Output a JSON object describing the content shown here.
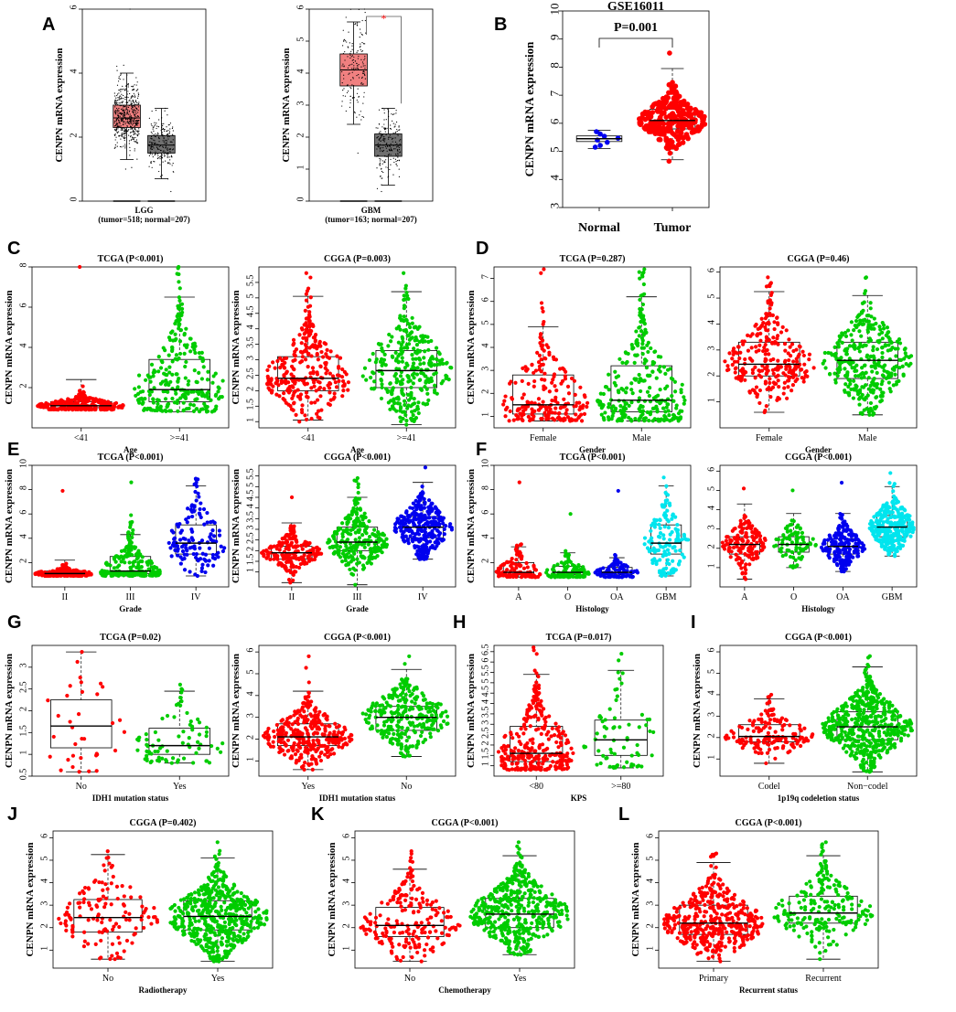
{
  "figure": {
    "labels": [
      "A",
      "B",
      "C",
      "D",
      "E",
      "F",
      "G",
      "H",
      "I",
      "J",
      "K",
      "L"
    ]
  },
  "colors": {
    "red": "#ff0000",
    "green": "#00cc00",
    "blue": "#0000ee",
    "cyan": "#00e5ee",
    "box_red": "#f08080",
    "box_gray": "#707070",
    "jitter": "#000000",
    "sig_star": "#ff0000"
  },
  "chart_data": [
    {
      "id": "A1",
      "panel": "A",
      "type": "boxplot",
      "title": "",
      "ylabel": "CENPN mRNA expression",
      "xlabel_lines": [
        "LGG",
        "(tumor=518; normal=207)"
      ],
      "ylim": [
        0,
        6
      ],
      "yticks": [
        0,
        2,
        4,
        6
      ],
      "groups": [
        {
          "name": "tumor",
          "q1": 2.3,
          "median": 2.6,
          "q3": 3.0,
          "whisker_low": 1.3,
          "whisker_high": 4.0,
          "n": 518,
          "color": "box_red",
          "points_range": [
            1.0,
            6.0
          ]
        },
        {
          "name": "normal",
          "q1": 1.5,
          "median": 1.75,
          "q3": 2.05,
          "whisker_low": 0.7,
          "whisker_high": 2.9,
          "n": 207,
          "color": "box_gray",
          "points_range": [
            0.3,
            2.9
          ]
        }
      ]
    },
    {
      "id": "A2",
      "panel": "A",
      "type": "boxplot",
      "title": "",
      "ylabel": "CENPN mRNA expression",
      "xlabel_lines": [
        "GBM",
        "(tumor=163; normal=207)"
      ],
      "ylim": [
        0,
        6
      ],
      "yticks": [
        0,
        1,
        2,
        3,
        4,
        5,
        6
      ],
      "significance": "*",
      "groups": [
        {
          "name": "tumor",
          "q1": 3.6,
          "median": 4.1,
          "q3": 4.6,
          "whisker_low": 2.4,
          "whisker_high": 5.6,
          "n": 163,
          "color": "box_red",
          "points_range": [
            1.5,
            6.0
          ]
        },
        {
          "name": "normal",
          "q1": 1.4,
          "median": 1.75,
          "q3": 2.1,
          "whisker_low": 0.5,
          "whisker_high": 2.9,
          "n": 207,
          "color": "box_gray",
          "points_range": [
            0.3,
            2.9
          ]
        }
      ]
    },
    {
      "id": "B",
      "panel": "B",
      "type": "beeswarm",
      "title": "GSE16011",
      "ylabel": "CENPN mRNA expression",
      "xlabel": "",
      "pvalue_label": "P=0.001",
      "ylim": [
        3,
        10
      ],
      "yticks": [
        3,
        4,
        5,
        6,
        7,
        8,
        9,
        10
      ],
      "groups": [
        {
          "name": "Normal",
          "n": 8,
          "q1": 5.35,
          "median": 5.45,
          "q3": 5.55,
          "whisker_low": 5.1,
          "whisker_high": 5.75,
          "min": 5.15,
          "max": 5.7,
          "color": "blue"
        },
        {
          "name": "Tumor",
          "n": 276,
          "q1": 5.8,
          "median": 6.1,
          "q3": 6.5,
          "whisker_low": 4.7,
          "whisker_high": 7.95,
          "min": 4.65,
          "max": 8.5,
          "color": "red"
        }
      ]
    },
    {
      "id": "C1",
      "panel": "C",
      "type": "beeswarm",
      "title": "TCGA (P<0.001)",
      "ylabel": "CENPN mRNA expression",
      "xlabel": "Age",
      "ylim": [
        0,
        8
      ],
      "yticks": [
        2,
        4,
        6,
        8
      ],
      "groups": [
        {
          "name": "<41",
          "n": 260,
          "q1": 1.0,
          "median": 1.1,
          "q3": 1.3,
          "whisker_low": 0.9,
          "whisker_high": 2.4,
          "min": 0.9,
          "max": 8.0,
          "color": "red"
        },
        {
          "name": ">=41",
          "n": 260,
          "q1": 1.3,
          "median": 1.9,
          "q3": 3.4,
          "whisker_low": 0.8,
          "whisker_high": 6.5,
          "min": 0.8,
          "max": 8.0,
          "color": "green"
        }
      ]
    },
    {
      "id": "C2",
      "panel": "C",
      "type": "beeswarm",
      "title": "CGGA (P=0.003)",
      "ylabel": "CENPN mRNA expression",
      "xlabel": "Age",
      "ylim": [
        0.8,
        6
      ],
      "yticks": [
        1,
        1.5,
        2,
        2.5,
        3,
        3.5,
        4,
        4.5,
        5,
        5.5
      ],
      "groups": [
        {
          "name": "<41",
          "n": 280,
          "q1": 2.0,
          "median": 2.4,
          "q3": 3.1,
          "whisker_low": 1.05,
          "whisker_high": 5.05,
          "min": 1.0,
          "max": 5.8,
          "color": "red"
        },
        {
          "name": ">=41",
          "n": 310,
          "q1": 2.1,
          "median": 2.65,
          "q3": 3.3,
          "whisker_low": 0.9,
          "whisker_high": 5.2,
          "min": 0.9,
          "max": 5.8,
          "color": "green"
        }
      ]
    },
    {
      "id": "D1",
      "panel": "D",
      "type": "beeswarm",
      "title": "TCGA (P=0.287)",
      "ylabel": "CENPN mRNA expression",
      "xlabel": "Gender",
      "ylim": [
        0.5,
        7.5
      ],
      "yticks": [
        1,
        2,
        3,
        4,
        5,
        6,
        7
      ],
      "groups": [
        {
          "name": "Female",
          "n": 210,
          "q1": 1.1,
          "median": 1.5,
          "q3": 2.8,
          "whisker_low": 0.8,
          "whisker_high": 4.9,
          "min": 0.8,
          "max": 7.4,
          "color": "red"
        },
        {
          "name": "Male",
          "n": 280,
          "q1": 1.2,
          "median": 1.7,
          "q3": 3.2,
          "whisker_low": 0.8,
          "whisker_high": 6.2,
          "min": 0.8,
          "max": 7.4,
          "color": "green"
        }
      ]
    },
    {
      "id": "D2",
      "panel": "D",
      "type": "beeswarm",
      "title": "CGGA (P=0.46)",
      "ylabel": "",
      "xlabel": "Gender",
      "ylim": [
        0,
        6.2
      ],
      "yticks": [
        1,
        2,
        3,
        4,
        5,
        6
      ],
      "groups": [
        {
          "name": "Female",
          "n": 260,
          "q1": 2.0,
          "median": 2.45,
          "q3": 3.3,
          "whisker_low": 0.6,
          "whisker_high": 5.25,
          "min": 0.6,
          "max": 5.8,
          "color": "red"
        },
        {
          "name": "Male",
          "n": 330,
          "q1": 1.9,
          "median": 2.6,
          "q3": 3.3,
          "whisker_low": 0.5,
          "whisker_high": 5.1,
          "min": 0.5,
          "max": 5.8,
          "color": "green"
        }
      ]
    },
    {
      "id": "E1",
      "panel": "E",
      "type": "beeswarm",
      "title": "TCGA (P<0.001)",
      "ylabel": "CENPN mRNA expression",
      "xlabel": "Grade",
      "ylim": [
        0,
        10
      ],
      "yticks": [
        2,
        4,
        6,
        8,
        10
      ],
      "groups": [
        {
          "name": "II",
          "n": 200,
          "q1": 1.0,
          "median": 1.1,
          "q3": 1.3,
          "whisker_low": 0.9,
          "whisker_high": 2.2,
          "min": 0.9,
          "max": 7.9,
          "color": "red"
        },
        {
          "name": "III",
          "n": 230,
          "q1": 1.1,
          "median": 1.3,
          "q3": 2.5,
          "whisker_low": 0.9,
          "whisker_high": 4.3,
          "min": 0.9,
          "max": 8.6,
          "color": "green"
        },
        {
          "name": "IV",
          "n": 130,
          "q1": 2.7,
          "median": 3.6,
          "q3": 5.1,
          "whisker_low": 0.9,
          "whisker_high": 8.3,
          "min": 0.9,
          "max": 8.9,
          "color": "blue"
        }
      ]
    },
    {
      "id": "E2",
      "panel": "E",
      "type": "beeswarm",
      "title": "CGGA (P<0.001)",
      "ylabel": "CENPN mRNA expression",
      "xlabel": "Grade",
      "ylim": [
        0.3,
        6
      ],
      "yticks": [
        1,
        1.5,
        2,
        2.5,
        3,
        3.5,
        4,
        4.5,
        5,
        5.5
      ],
      "groups": [
        {
          "name": "II",
          "n": 190,
          "q1": 1.6,
          "median": 1.9,
          "q3": 2.2,
          "whisker_low": 0.5,
          "whisker_high": 3.3,
          "min": 0.5,
          "max": 4.5,
          "color": "red"
        },
        {
          "name": "III",
          "n": 250,
          "q1": 2.0,
          "median": 2.4,
          "q3": 3.1,
          "whisker_low": 0.4,
          "whisker_high": 4.5,
          "min": 0.4,
          "max": 5.4,
          "color": "green"
        },
        {
          "name": "IV",
          "n": 300,
          "q1": 2.6,
          "median": 3.1,
          "q3": 3.6,
          "whisker_low": 1.6,
          "whisker_high": 5.2,
          "min": 1.6,
          "max": 5.9,
          "color": "blue"
        }
      ]
    },
    {
      "id": "F1",
      "panel": "F",
      "type": "beeswarm",
      "title": "TCGA (P<0.001)",
      "ylabel": "CENPN mRNA expression",
      "xlabel": "Histology",
      "ylim": [
        0,
        10
      ],
      "yticks": [
        2,
        4,
        6,
        8,
        10
      ],
      "groups": [
        {
          "name": "A",
          "n": 120,
          "q1": 1.0,
          "median": 1.2,
          "q3": 2.0,
          "whisker_low": 0.8,
          "whisker_high": 3.3,
          "min": 0.8,
          "max": 8.6,
          "color": "red"
        },
        {
          "name": "O",
          "n": 120,
          "q1": 1.0,
          "median": 1.2,
          "q3": 1.7,
          "whisker_low": 0.8,
          "whisker_high": 2.8,
          "min": 0.8,
          "max": 6.0,
          "color": "green"
        },
        {
          "name": "OA",
          "n": 90,
          "q1": 1.0,
          "median": 1.2,
          "q3": 1.6,
          "whisker_low": 0.8,
          "whisker_high": 2.4,
          "min": 0.8,
          "max": 7.9,
          "color": "blue"
        },
        {
          "name": "GBM",
          "n": 140,
          "q1": 2.7,
          "median": 3.6,
          "q3": 5.1,
          "whisker_low": 0.9,
          "whisker_high": 8.3,
          "min": 0.9,
          "max": 9.0,
          "color": "cyan"
        }
      ]
    },
    {
      "id": "F2",
      "panel": "F",
      "type": "beeswarm",
      "title": "CGGA (P<0.001)",
      "ylabel": "",
      "xlabel": "Histology",
      "ylim": [
        0,
        6.3
      ],
      "yticks": [
        1,
        2,
        3,
        4,
        5,
        6
      ],
      "groups": [
        {
          "name": "A",
          "n": 150,
          "q1": 1.7,
          "median": 2.2,
          "q3": 2.6,
          "whisker_low": 0.4,
          "whisker_high": 4.3,
          "min": 0.4,
          "max": 5.1,
          "color": "red"
        },
        {
          "name": "O",
          "n": 80,
          "q1": 1.8,
          "median": 2.2,
          "q3": 2.6,
          "whisker_low": 1.0,
          "whisker_high": 3.8,
          "min": 1.0,
          "max": 5.0,
          "color": "green"
        },
        {
          "name": "OA",
          "n": 200,
          "q1": 1.7,
          "median": 2.1,
          "q3": 2.5,
          "whisker_low": 0.8,
          "whisker_high": 3.8,
          "min": 0.8,
          "max": 5.4,
          "color": "blue"
        },
        {
          "name": "GBM",
          "n": 300,
          "q1": 2.6,
          "median": 3.1,
          "q3": 3.7,
          "whisker_low": 1.6,
          "whisker_high": 5.2,
          "min": 1.6,
          "max": 5.9,
          "color": "cyan"
        }
      ]
    },
    {
      "id": "G1",
      "panel": "G",
      "type": "beeswarm",
      "title": "TCGA (P=0.02)",
      "ylabel": "CENPN mRNA expression",
      "xlabel": "IDH1 mutation status",
      "ylim": [
        0.5,
        3.5
      ],
      "yticks": [
        0.5,
        1,
        1.5,
        2,
        2.5,
        3
      ],
      "groups": [
        {
          "name": "No",
          "n": 35,
          "q1": 1.15,
          "median": 1.65,
          "q3": 2.25,
          "whisker_low": 0.6,
          "whisker_high": 3.35,
          "min": 0.6,
          "max": 3.35,
          "color": "red"
        },
        {
          "name": "Yes",
          "n": 80,
          "q1": 1.0,
          "median": 1.2,
          "q3": 1.6,
          "whisker_low": 0.8,
          "whisker_high": 2.45,
          "min": 0.8,
          "max": 2.6,
          "color": "green"
        }
      ]
    },
    {
      "id": "G2",
      "panel": "G",
      "type": "beeswarm",
      "title": "CGGA (P<0.001)",
      "ylabel": "CENPN mRNA expression",
      "xlabel": "IDH1 mutation status",
      "ylim": [
        0.3,
        6.3
      ],
      "yticks": [
        1,
        2,
        3,
        4,
        5,
        6
      ],
      "groups": [
        {
          "name": "Yes",
          "n": 330,
          "q1": 1.7,
          "median": 2.1,
          "q3": 2.7,
          "whisker_low": 0.6,
          "whisker_high": 4.2,
          "min": 0.6,
          "max": 5.8,
          "color": "red"
        },
        {
          "name": "No",
          "n": 300,
          "q1": 2.4,
          "median": 3.0,
          "q3": 3.5,
          "whisker_low": 1.2,
          "whisker_high": 5.2,
          "min": 1.2,
          "max": 5.8,
          "color": "green"
        }
      ]
    },
    {
      "id": "H",
      "panel": "H",
      "type": "beeswarm",
      "title": "TCGA (P=0.017)",
      "ylabel": "CENPN mRNA expression",
      "xlabel": "KPS",
      "ylim": [
        0.5,
        6.8
      ],
      "yticks": [
        1,
        1.5,
        2,
        2.5,
        3,
        3.5,
        4,
        4.5,
        5,
        5.5,
        6,
        6.5
      ],
      "groups": [
        {
          "name": "<80",
          "n": 300,
          "q1": 1.2,
          "median": 1.6,
          "q3": 2.9,
          "whisker_low": 0.8,
          "whisker_high": 5.4,
          "min": 0.8,
          "max": 6.7,
          "color": "red"
        },
        {
          "name": ">=80",
          "n": 70,
          "q1": 1.5,
          "median": 2.25,
          "q3": 3.2,
          "whisker_low": 0.9,
          "whisker_high": 5.6,
          "min": 0.9,
          "max": 6.4,
          "color": "green"
        }
      ]
    },
    {
      "id": "I",
      "panel": "I",
      "type": "beeswarm",
      "title": "CGGA (P<0.001)",
      "ylabel": "CENPN mRNA expression",
      "xlabel": "1p19q codeletion status",
      "ylim": [
        0.2,
        6.3
      ],
      "yticks": [
        1,
        2,
        3,
        4,
        5,
        6
      ],
      "groups": [
        {
          "name": "Codel",
          "n": 160,
          "q1": 1.8,
          "median": 2.05,
          "q3": 2.6,
          "whisker_low": 0.8,
          "whisker_high": 3.8,
          "min": 0.8,
          "max": 4.0,
          "color": "red"
        },
        {
          "name": "Non−codel",
          "n": 520,
          "q1": 1.9,
          "median": 2.5,
          "q3": 3.2,
          "whisker_low": 0.4,
          "whisker_high": 5.3,
          "min": 0.4,
          "max": 5.8,
          "color": "green"
        }
      ]
    },
    {
      "id": "J",
      "panel": "J",
      "type": "beeswarm",
      "title": "CGGA (P=0.402)",
      "ylabel": "CENPN mRNA expression",
      "xlabel": "Radiotherapy",
      "ylim": [
        0.2,
        6.3
      ],
      "yticks": [
        1,
        2,
        3,
        4,
        5,
        6
      ],
      "groups": [
        {
          "name": "No",
          "n": 130,
          "q1": 1.8,
          "median": 2.45,
          "q3": 3.25,
          "whisker_low": 0.6,
          "whisker_high": 5.25,
          "min": 0.6,
          "max": 5.4,
          "color": "red"
        },
        {
          "name": "Yes",
          "n": 520,
          "q1": 1.9,
          "median": 2.5,
          "q3": 3.2,
          "whisker_low": 0.5,
          "whisker_high": 5.1,
          "min": 0.5,
          "max": 5.8,
          "color": "green"
        }
      ]
    },
    {
      "id": "K",
      "panel": "K",
      "type": "beeswarm",
      "title": "CGGA (P<0.001)",
      "ylabel": "CENPN mRNA expression",
      "xlabel": "Chemotherapy",
      "ylim": [
        0.2,
        6.3
      ],
      "yticks": [
        1,
        2,
        3,
        4,
        5,
        6
      ],
      "groups": [
        {
          "name": "No",
          "n": 200,
          "q1": 1.6,
          "median": 2.1,
          "q3": 2.9,
          "whisker_low": 0.5,
          "whisker_high": 4.6,
          "min": 0.5,
          "max": 5.4,
          "color": "red"
        },
        {
          "name": "Yes",
          "n": 450,
          "q1": 2.0,
          "median": 2.6,
          "q3": 3.3,
          "whisker_low": 0.8,
          "whisker_high": 5.2,
          "min": 0.8,
          "max": 5.8,
          "color": "green"
        }
      ]
    },
    {
      "id": "L",
      "panel": "L",
      "type": "beeswarm",
      "title": "CGGA (P<0.001)",
      "ylabel": "CENPN mRNA expression",
      "xlabel": "Recurrent status",
      "ylim": [
        0.2,
        6.3
      ],
      "yticks": [
        1,
        2,
        3,
        4,
        5,
        6
      ],
      "groups": [
        {
          "name": "Primary",
          "n": 420,
          "q1": 1.7,
          "median": 2.2,
          "q3": 3.0,
          "whisker_low": 0.5,
          "whisker_high": 4.9,
          "min": 0.5,
          "max": 5.3,
          "color": "red"
        },
        {
          "name": "Recurrent",
          "n": 220,
          "q1": 2.2,
          "median": 2.65,
          "q3": 3.4,
          "whisker_low": 0.6,
          "whisker_high": 5.2,
          "min": 0.6,
          "max": 5.8,
          "color": "green"
        }
      ]
    }
  ]
}
